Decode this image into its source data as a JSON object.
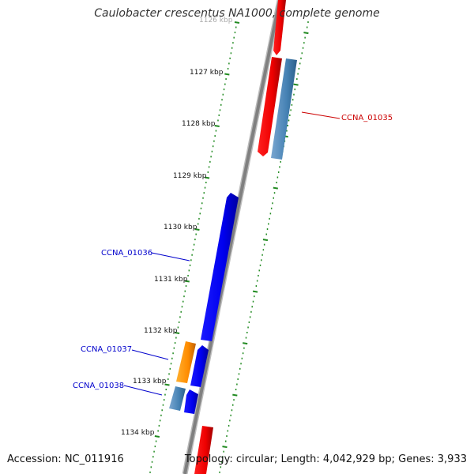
{
  "title": "Caulobacter crescentus NA1000, complete genome",
  "accession": "Accession: NC_011916",
  "summary": "Topology: circular; Length: 4,042,929 bp; Genes: 3,933",
  "top_scale_label": "1126 kbp",
  "scale_labels": [
    "1127 kbp",
    "1128 kbp",
    "1129 kbp",
    "1130 kbp",
    "1131 kbp",
    "1132 kbp",
    "1133 kbp",
    "1134 kbp"
  ],
  "gene_labels": [
    "CCNA_01035",
    "CCNA_01036",
    "CCNA_01037",
    "CCNA_01038"
  ],
  "colors": {
    "backbone": "#808080",
    "forward_track": "#ff0000",
    "reverse_track": "#0000ff",
    "highlight_blue": "#4682b4",
    "highlight_orange": "#ff8c00",
    "ticks": "#228b22",
    "label_red": "#cc0000",
    "label_blue": "#0000cc"
  }
}
